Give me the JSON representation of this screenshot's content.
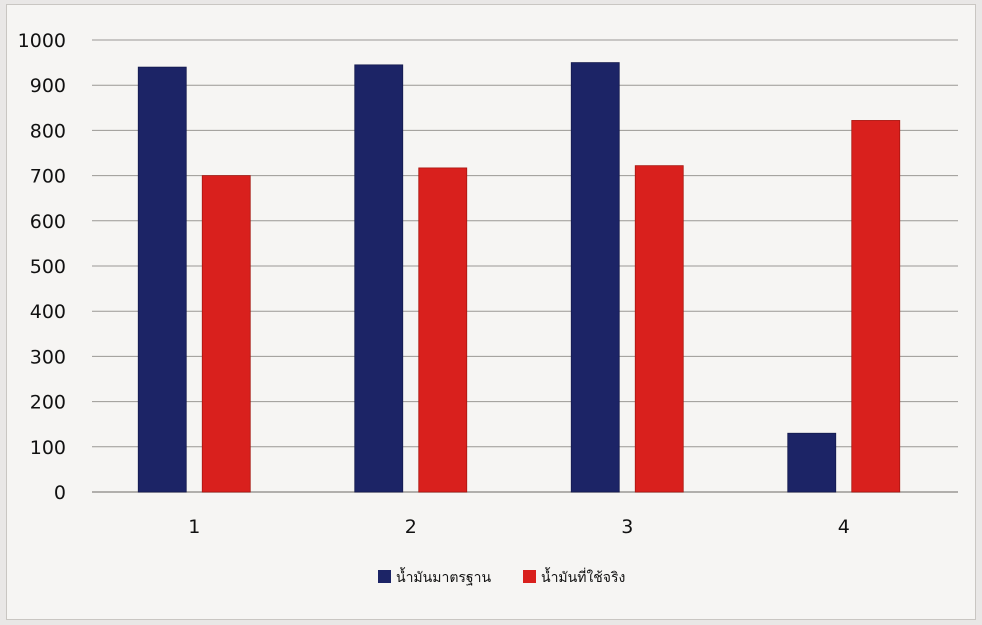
{
  "chart_data": {
    "type": "bar",
    "categories": [
      "1",
      "2",
      "3",
      "4"
    ],
    "series": [
      {
        "name": "น้ำมันมาตรฐาน",
        "values": [
          940,
          945,
          950,
          130
        ],
        "color": "#1c2466"
      },
      {
        "name": "น้ำมันที่ใช้จริง",
        "values": [
          700,
          717,
          722,
          822
        ],
        "color": "#d9201d"
      }
    ],
    "ylim": [
      0,
      1000
    ],
    "yticks": [
      "0",
      "100",
      "200",
      "300",
      "400",
      "500",
      "600",
      "700",
      "800",
      "900",
      "1000"
    ],
    "grid": true,
    "legend_position": "bottom"
  }
}
